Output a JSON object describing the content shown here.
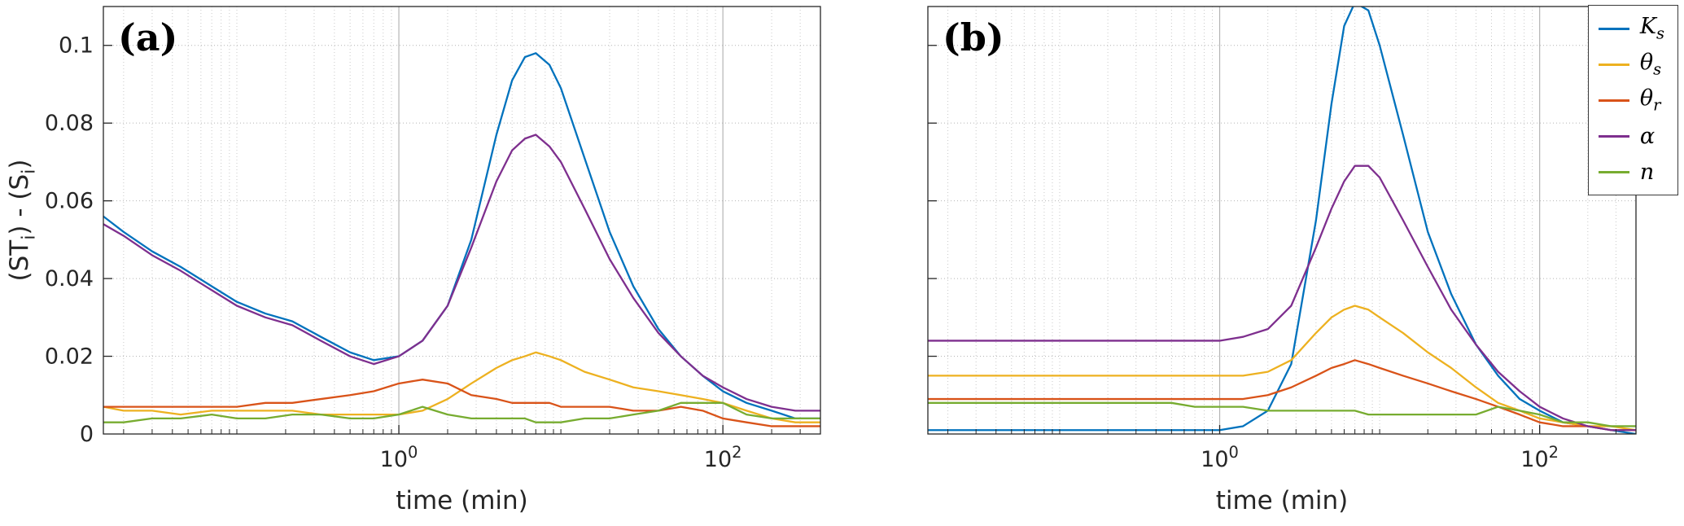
{
  "figure": {
    "background": "#ffffff",
    "text_color": "#262626",
    "panels": [
      {
        "label": "(a)",
        "xlabel": "time (min)",
        "ylabel": "(ST_i) - (S_i)",
        "x_tick_labels": [
          "10^0",
          "10^2"
        ],
        "y_tick_labels": [
          "0",
          "0.02",
          "0.04",
          "0.06",
          "0.08",
          "0.1"
        ]
      },
      {
        "label": "(b)",
        "xlabel": "time (min)",
        "ylabel": "",
        "x_tick_labels": [
          "10^0",
          "10^2"
        ],
        "y_tick_labels": []
      }
    ],
    "legend": {
      "position": "northeast",
      "entries": [
        {
          "label": "K_s",
          "color": "#0072BD"
        },
        {
          "label": "θ_s",
          "color": "#EDB120"
        },
        {
          "label": "θ_r",
          "color": "#D95319"
        },
        {
          "label": "α",
          "color": "#7E2F8E"
        },
        {
          "label": "n",
          "color": "#77AC30"
        }
      ]
    }
  },
  "chart_data": [
    {
      "type": "line",
      "panel": "(a)",
      "x_scale": "log",
      "xlabel": "time (min)",
      "ylabel": "(ST_i) - (S_i)",
      "xlim": [
        0.015,
        400
      ],
      "ylim": [
        0,
        0.11
      ],
      "grid": true,
      "minor_grid": true,
      "x_tick_values": [
        1,
        100
      ],
      "x_tick_labels": [
        "10^0",
        "10^2"
      ],
      "y_tick_values": [
        0,
        0.02,
        0.04,
        0.06,
        0.08,
        0.1
      ],
      "y_tick_labels": [
        "0",
        "0.02",
        "0.04",
        "0.06",
        "0.08",
        "0.1"
      ],
      "x": [
        0.015,
        0.02,
        0.03,
        0.045,
        0.07,
        0.1,
        0.15,
        0.22,
        0.33,
        0.5,
        0.7,
        1.0,
        1.4,
        2.0,
        2.8,
        4.0,
        5.0,
        6.0,
        7.0,
        8.5,
        10,
        14,
        20,
        28,
        40,
        55,
        75,
        100,
        140,
        200,
        280,
        400
      ],
      "series": [
        {
          "name": "K_s",
          "color": "#0072BD",
          "values": [
            0.056,
            0.052,
            0.047,
            0.043,
            0.038,
            0.034,
            0.031,
            0.029,
            0.025,
            0.021,
            0.019,
            0.02,
            0.024,
            0.033,
            0.05,
            0.077,
            0.091,
            0.097,
            0.098,
            0.095,
            0.089,
            0.071,
            0.052,
            0.038,
            0.027,
            0.02,
            0.015,
            0.011,
            0.008,
            0.006,
            0.004,
            0.004
          ]
        },
        {
          "name": "θ_s",
          "color": "#EDB120",
          "values": [
            0.007,
            0.006,
            0.006,
            0.005,
            0.006,
            0.006,
            0.006,
            0.006,
            0.005,
            0.005,
            0.005,
            0.005,
            0.006,
            0.009,
            0.013,
            0.017,
            0.019,
            0.02,
            0.021,
            0.02,
            0.019,
            0.016,
            0.014,
            0.012,
            0.011,
            0.01,
            0.009,
            0.008,
            0.006,
            0.004,
            0.003,
            0.003
          ]
        },
        {
          "name": "θ_r",
          "color": "#D95319",
          "values": [
            0.007,
            0.007,
            0.007,
            0.007,
            0.007,
            0.007,
            0.008,
            0.008,
            0.009,
            0.01,
            0.011,
            0.013,
            0.014,
            0.013,
            0.01,
            0.009,
            0.008,
            0.008,
            0.008,
            0.008,
            0.007,
            0.007,
            0.007,
            0.006,
            0.006,
            0.007,
            0.006,
            0.004,
            0.003,
            0.002,
            0.002,
            0.002
          ]
        },
        {
          "name": "α",
          "color": "#7E2F8E",
          "values": [
            0.054,
            0.051,
            0.046,
            0.042,
            0.037,
            0.033,
            0.03,
            0.028,
            0.024,
            0.02,
            0.018,
            0.02,
            0.024,
            0.033,
            0.048,
            0.065,
            0.073,
            0.076,
            0.077,
            0.074,
            0.07,
            0.058,
            0.045,
            0.035,
            0.026,
            0.02,
            0.015,
            0.012,
            0.009,
            0.007,
            0.006,
            0.006
          ]
        },
        {
          "name": "n",
          "color": "#77AC30",
          "values": [
            0.003,
            0.003,
            0.004,
            0.004,
            0.005,
            0.004,
            0.004,
            0.005,
            0.005,
            0.004,
            0.004,
            0.005,
            0.007,
            0.005,
            0.004,
            0.004,
            0.004,
            0.004,
            0.003,
            0.003,
            0.003,
            0.004,
            0.004,
            0.005,
            0.006,
            0.008,
            0.008,
            0.008,
            0.005,
            0.004,
            0.004,
            0.004
          ]
        }
      ]
    },
    {
      "type": "line",
      "panel": "(b)",
      "x_scale": "log",
      "xlabel": "time (min)",
      "ylabel": "",
      "xlim": [
        0.015,
        400
      ],
      "ylim": [
        0,
        0.11
      ],
      "grid": true,
      "minor_grid": true,
      "x_tick_values": [
        1,
        100
      ],
      "x_tick_labels": [
        "10^0",
        "10^2"
      ],
      "y_tick_values": [
        0,
        0.02,
        0.04,
        0.06,
        0.08,
        0.1
      ],
      "y_tick_labels": [],
      "x": [
        0.015,
        0.02,
        0.03,
        0.045,
        0.07,
        0.1,
        0.15,
        0.22,
        0.33,
        0.5,
        0.7,
        1.0,
        1.4,
        2.0,
        2.8,
        4.0,
        5.0,
        6.0,
        7.0,
        8.5,
        10,
        14,
        20,
        28,
        40,
        55,
        75,
        100,
        140,
        200,
        280,
        400
      ],
      "series": [
        {
          "name": "K_s",
          "color": "#0072BD",
          "values": [
            0.001,
            0.001,
            0.001,
            0.001,
            0.001,
            0.001,
            0.001,
            0.001,
            0.001,
            0.001,
            0.001,
            0.001,
            0.002,
            0.006,
            0.018,
            0.055,
            0.085,
            0.105,
            0.111,
            0.109,
            0.1,
            0.077,
            0.052,
            0.036,
            0.023,
            0.015,
            0.009,
            0.006,
            0.003,
            0.002,
            0.001,
            0.0
          ]
        },
        {
          "name": "θ_s",
          "color": "#EDB120",
          "values": [
            0.015,
            0.015,
            0.015,
            0.015,
            0.015,
            0.015,
            0.015,
            0.015,
            0.015,
            0.015,
            0.015,
            0.015,
            0.015,
            0.016,
            0.019,
            0.026,
            0.03,
            0.032,
            0.033,
            0.032,
            0.03,
            0.026,
            0.021,
            0.017,
            0.012,
            0.008,
            0.006,
            0.004,
            0.003,
            0.002,
            0.002,
            0.001
          ]
        },
        {
          "name": "θ_r",
          "color": "#D95319",
          "values": [
            0.009,
            0.009,
            0.009,
            0.009,
            0.009,
            0.009,
            0.009,
            0.009,
            0.009,
            0.009,
            0.009,
            0.009,
            0.009,
            0.01,
            0.012,
            0.015,
            0.017,
            0.018,
            0.019,
            0.018,
            0.017,
            0.015,
            0.013,
            0.011,
            0.009,
            0.007,
            0.005,
            0.003,
            0.002,
            0.002,
            0.001,
            0.001
          ]
        },
        {
          "name": "α",
          "color": "#7E2F8E",
          "values": [
            0.024,
            0.024,
            0.024,
            0.024,
            0.024,
            0.024,
            0.024,
            0.024,
            0.024,
            0.024,
            0.024,
            0.024,
            0.025,
            0.027,
            0.033,
            0.048,
            0.058,
            0.065,
            0.069,
            0.069,
            0.066,
            0.055,
            0.043,
            0.032,
            0.023,
            0.016,
            0.011,
            0.007,
            0.004,
            0.002,
            0.001,
            0.001
          ]
        },
        {
          "name": "n",
          "color": "#77AC30",
          "values": [
            0.008,
            0.008,
            0.008,
            0.008,
            0.008,
            0.008,
            0.008,
            0.008,
            0.008,
            0.008,
            0.007,
            0.007,
            0.007,
            0.006,
            0.006,
            0.006,
            0.006,
            0.006,
            0.006,
            0.005,
            0.005,
            0.005,
            0.005,
            0.005,
            0.005,
            0.007,
            0.006,
            0.005,
            0.003,
            0.003,
            0.002,
            0.002
          ]
        }
      ]
    }
  ]
}
